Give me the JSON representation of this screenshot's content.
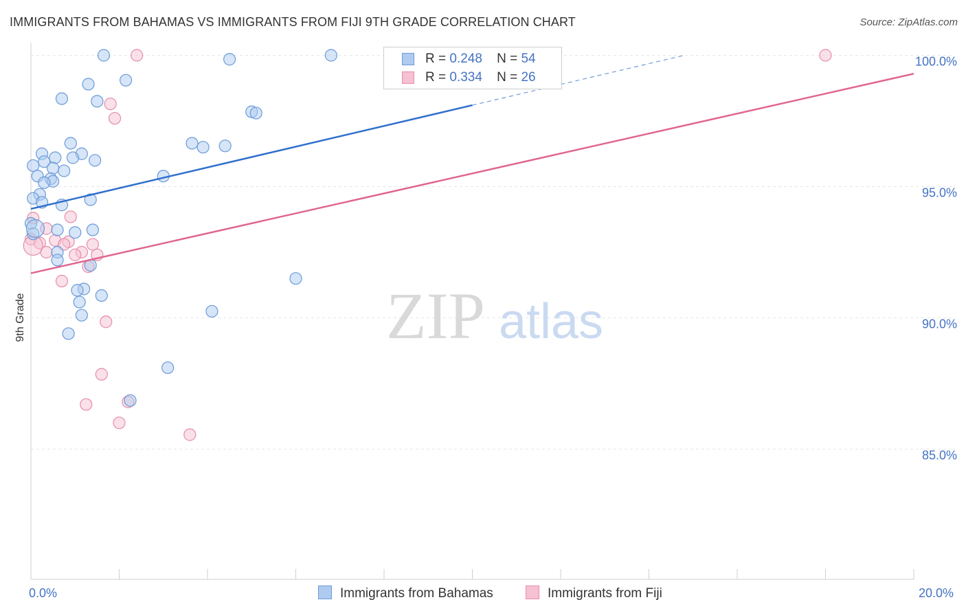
{
  "header": {
    "title": "IMMIGRANTS FROM BAHAMAS VS IMMIGRANTS FROM FIJI 9TH GRADE CORRELATION CHART",
    "source": "Source: ZipAtlas.com"
  },
  "watermark": {
    "zip": "ZIP",
    "atlas": "atlas"
  },
  "legend": {
    "r_label": "R =",
    "n_label": "N =",
    "series": [
      {
        "r": "0.248",
        "n": "54"
      },
      {
        "r": "0.334",
        "n": "26"
      }
    ]
  },
  "bottom_legend": [
    "Immigrants from Bahamas",
    "Immigrants from Fiji"
  ],
  "chart_data": {
    "type": "scatter",
    "title": "IMMIGRANTS FROM BAHAMAS VS IMMIGRANTS FROM FIJI 9TH GRADE CORRELATION CHART",
    "xlabel": "",
    "ylabel": "9th Grade",
    "xlim": [
      0,
      20
    ],
    "ylim": [
      80.5,
      100.7
    ],
    "x_tick_labels": [
      "0.0%",
      "20.0%"
    ],
    "y_ticks": [
      85,
      90,
      95,
      100
    ],
    "y_tick_labels": [
      "85.0%",
      "90.0%",
      "95.0%",
      "100.0%"
    ],
    "grid": true,
    "colors": {
      "bahamas_fill": "#aecbef",
      "bahamas_stroke": "#6a9ad8",
      "bahamas_line": "#2f6fcc",
      "fiji_fill": "#f6c1d2",
      "fiji_stroke": "#e58cab",
      "fiji_line": "#e06690"
    },
    "series": [
      {
        "name": "Immigrants from Bahamas",
        "r": 0.248,
        "n": 54,
        "trend": {
          "x0": 0.0,
          "y0": 94.15,
          "x1": 10.0,
          "y1": 98.1,
          "dash_to_x": 14.8,
          "dash_to_y": 100.0
        },
        "points": [
          [
            1.65,
            100.0
          ],
          [
            6.8,
            100.0
          ],
          [
            4.5,
            99.85
          ],
          [
            2.15,
            99.05
          ],
          [
            1.3,
            98.9
          ],
          [
            0.7,
            98.35
          ],
          [
            1.5,
            98.25
          ],
          [
            5.0,
            97.85
          ],
          [
            5.1,
            97.8
          ],
          [
            3.65,
            96.65
          ],
          [
            3.9,
            96.5
          ],
          [
            4.4,
            96.55
          ],
          [
            0.9,
            96.65
          ],
          [
            1.15,
            96.25
          ],
          [
            0.25,
            96.25
          ],
          [
            0.55,
            96.1
          ],
          [
            0.3,
            95.95
          ],
          [
            1.45,
            96.0
          ],
          [
            0.95,
            96.1
          ],
          [
            0.05,
            95.8
          ],
          [
            0.5,
            95.7
          ],
          [
            0.75,
            95.6
          ],
          [
            0.15,
            95.4
          ],
          [
            0.45,
            95.3
          ],
          [
            0.5,
            95.2
          ],
          [
            0.3,
            95.15
          ],
          [
            3.0,
            95.4
          ],
          [
            0.2,
            94.7
          ],
          [
            0.05,
            94.55
          ],
          [
            0.25,
            94.4
          ],
          [
            0.7,
            94.3
          ],
          [
            1.35,
            94.5
          ],
          [
            0.0,
            93.6
          ],
          [
            0.6,
            93.35
          ],
          [
            1.0,
            93.25
          ],
          [
            1.4,
            93.35
          ],
          [
            0.05,
            93.2
          ],
          [
            0.6,
            92.5
          ],
          [
            0.6,
            92.2
          ],
          [
            1.35,
            92.0
          ],
          [
            6.0,
            91.5
          ],
          [
            1.2,
            91.1
          ],
          [
            1.05,
            91.05
          ],
          [
            1.6,
            90.85
          ],
          [
            1.1,
            90.6
          ],
          [
            1.15,
            90.1
          ],
          [
            4.1,
            90.25
          ],
          [
            0.85,
            89.4
          ],
          [
            3.1,
            88.1
          ],
          [
            2.25,
            86.85
          ]
        ]
      },
      {
        "name": "Immigrants from Fiji",
        "r": 0.334,
        "n": 26,
        "trend": {
          "x0": 0.0,
          "y0": 91.7,
          "x1": 20.0,
          "y1": 99.3
        },
        "points": [
          [
            2.4,
            100.0
          ],
          [
            18.0,
            100.0
          ],
          [
            1.8,
            98.15
          ],
          [
            1.9,
            97.6
          ],
          [
            0.05,
            93.8
          ],
          [
            0.35,
            93.4
          ],
          [
            0.9,
            93.85
          ],
          [
            0.0,
            93.0
          ],
          [
            0.2,
            92.85
          ],
          [
            0.55,
            92.95
          ],
          [
            0.85,
            92.9
          ],
          [
            0.75,
            92.8
          ],
          [
            1.4,
            92.8
          ],
          [
            0.35,
            92.5
          ],
          [
            1.15,
            92.5
          ],
          [
            1.0,
            92.4
          ],
          [
            1.5,
            92.4
          ],
          [
            1.3,
            91.95
          ],
          [
            0.7,
            91.4
          ],
          [
            1.7,
            89.85
          ],
          [
            1.6,
            87.85
          ],
          [
            2.2,
            86.8
          ],
          [
            1.25,
            86.7
          ],
          [
            2.0,
            86.0
          ],
          [
            3.6,
            85.55
          ]
        ]
      }
    ]
  }
}
